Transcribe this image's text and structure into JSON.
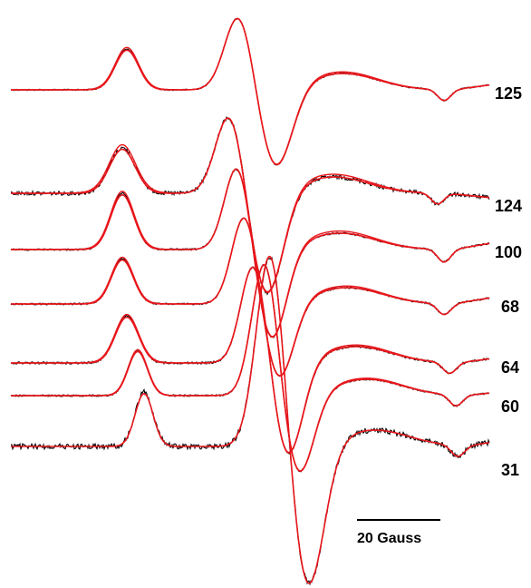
{
  "chart_data": {
    "type": "line",
    "title": "",
    "xlabel": "",
    "ylabel": "",
    "scale_bar": {
      "label": "20 Gauss",
      "value_gauss": 20
    },
    "colors": {
      "experimental": "#000000",
      "simulated": "#e8161b"
    },
    "traces": [
      {
        "label": "125",
        "name": "125"
      },
      {
        "label": "124",
        "name": "124"
      },
      {
        "label": "100",
        "name": "100"
      },
      {
        "label": "68",
        "name": "68"
      },
      {
        "label": "64",
        "name": "64"
      },
      {
        "label": "60",
        "name": "60"
      },
      {
        "label": "31",
        "name": "31"
      }
    ]
  }
}
